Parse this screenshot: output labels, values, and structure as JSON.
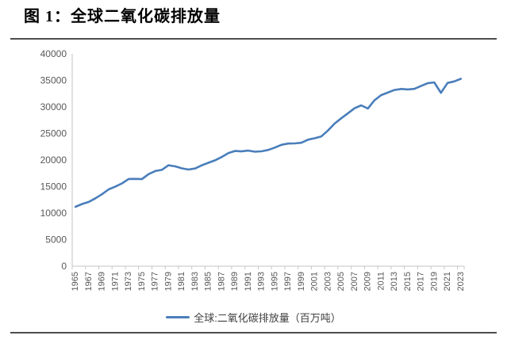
{
  "page": {
    "title": "图 1：全球二氧化碳排放量"
  },
  "chart_data": {
    "type": "line",
    "title": "图 1：全球二氧化碳排放量",
    "xlabel": "",
    "ylabel": "",
    "ylim": [
      0,
      40000
    ],
    "y_ticks": [
      0,
      5000,
      10000,
      15000,
      20000,
      25000,
      30000,
      35000,
      40000
    ],
    "grid": false,
    "legend_position": "bottom",
    "x": [
      1965,
      1966,
      1967,
      1968,
      1969,
      1970,
      1971,
      1972,
      1973,
      1974,
      1975,
      1976,
      1977,
      1978,
      1979,
      1980,
      1981,
      1982,
      1983,
      1984,
      1985,
      1986,
      1987,
      1988,
      1989,
      1990,
      1991,
      1992,
      1993,
      1994,
      1995,
      1996,
      1997,
      1998,
      1999,
      2000,
      2001,
      2002,
      2003,
      2004,
      2005,
      2006,
      2007,
      2008,
      2009,
      2010,
      2011,
      2012,
      2013,
      2014,
      2015,
      2016,
      2017,
      2018,
      2019,
      2020,
      2021,
      2022,
      2023
    ],
    "x_tick_labels": [
      "1965",
      "1967",
      "1969",
      "1971",
      "1973",
      "1975",
      "1977",
      "1979",
      "1981",
      "1983",
      "1985",
      "1987",
      "1989",
      "1991",
      "1993",
      "1995",
      "1997",
      "1999",
      "2001",
      "2003",
      "2005",
      "2007",
      "2009",
      "2011",
      "2013",
      "2015",
      "2017",
      "2019",
      "2021",
      "2023"
    ],
    "series": [
      {
        "name": "全球:二氧化碳排放量（百万吨）",
        "values": [
          11190,
          11720,
          12110,
          12790,
          13570,
          14480,
          14990,
          15590,
          16440,
          16450,
          16400,
          17350,
          17930,
          18150,
          19020,
          18810,
          18430,
          18210,
          18400,
          19000,
          19480,
          19940,
          20570,
          21320,
          21700,
          21620,
          21770,
          21560,
          21640,
          21900,
          22350,
          22870,
          23110,
          23130,
          23260,
          23840,
          24110,
          24450,
          25570,
          26870,
          27860,
          28790,
          29740,
          30300,
          29700,
          31260,
          32220,
          32700,
          33190,
          33390,
          33300,
          33400,
          33940,
          34460,
          34620,
          32650,
          34520,
          34800,
          35300
        ]
      }
    ],
    "colors": {
      "line": "#4a7ebb",
      "axis": "#c6c6c6",
      "tick_label": "#595959",
      "legend_text": "#404040",
      "divider": "#4d4d4d"
    }
  },
  "legend": {
    "label": "全球:二氧化碳排放量（百万吨）"
  }
}
